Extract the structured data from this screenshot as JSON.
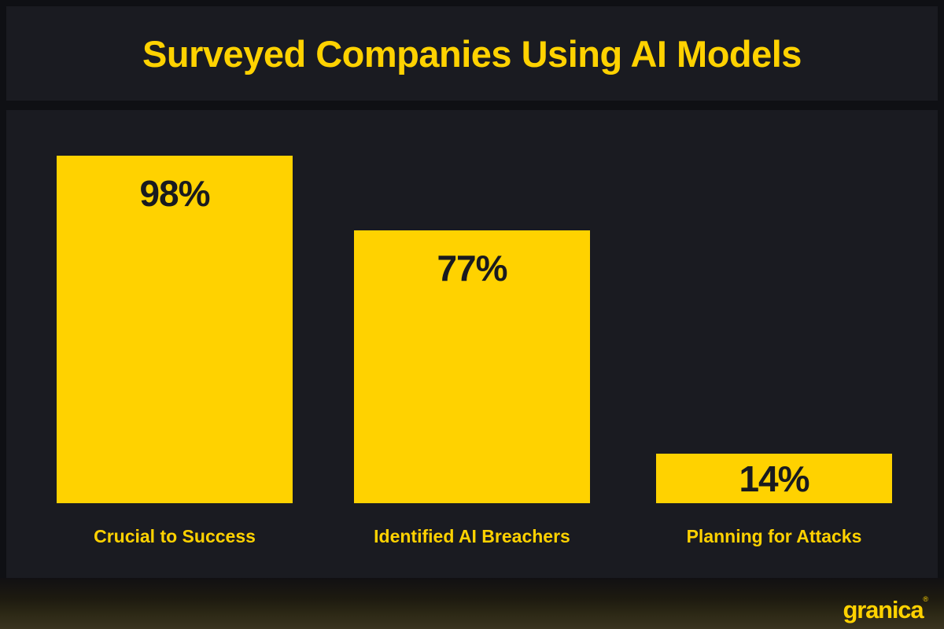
{
  "header": {
    "title": "Surveyed Companies Using AI Models"
  },
  "chart_data": {
    "type": "bar",
    "title": "Surveyed Companies Using AI Models",
    "unit": "%",
    "categories": [
      "Crucial to Success",
      "Identified AI Breachers",
      "Planning for Attacks"
    ],
    "values": [
      98,
      77,
      14
    ],
    "bars": [
      {
        "label": "Crucial to Success",
        "value": 98,
        "display_value": "98%"
      },
      {
        "label": "Identified AI Breachers",
        "value": 77,
        "display_value": "77%"
      },
      {
        "label": "Planning for Attacks",
        "value": 14,
        "display_value": "14%"
      }
    ],
    "ylim": [
      0,
      100
    ],
    "grid": false,
    "legend": false,
    "value_label_position": "inside-top",
    "bar_color": "#FFD200",
    "value_label_color": "#191A1F",
    "category_label_color": "#FFD200"
  },
  "footer": {
    "logo_text": "granica",
    "logo_mark": "®"
  },
  "colors": {
    "accent_yellow": "#FFD200",
    "panel_bg": "#1A1B21",
    "outer_bg": "#0F1014",
    "dark_text_on_bar": "#191A1F",
    "footer_gradient_top": "#111013",
    "footer_gradient_bottom": "#3A3420"
  }
}
